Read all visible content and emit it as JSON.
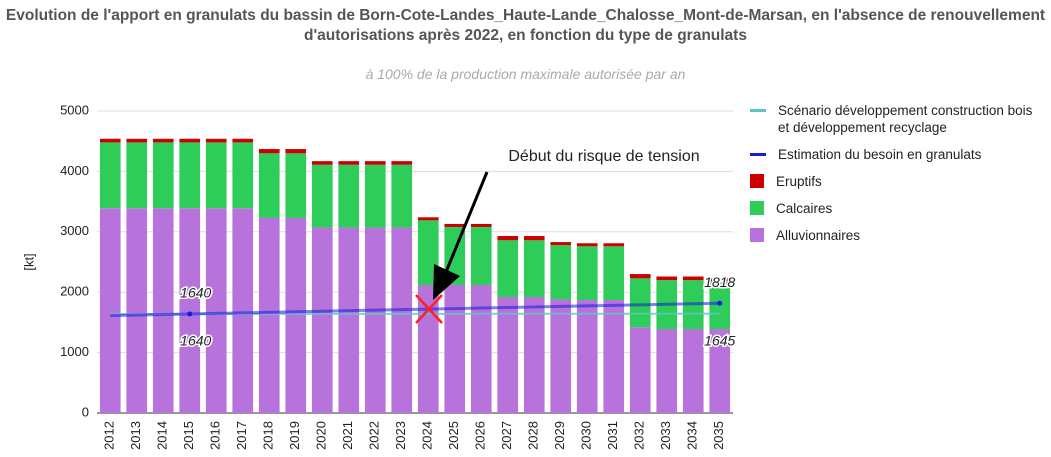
{
  "chart_data": {
    "type": "bar",
    "title": "Evolution de l'apport en granulats du bassin de Born-Cote-Landes_Haute-Lande_Chalosse_Mont-de-Marsan, en l'absence de renouvellement d'autorisations après 2022, en fonction du type de granulats",
    "subtitle": "à 100% de la production maximale autorisée par an",
    "y_label": "[kt]",
    "annotation": "Début du risque de tension",
    "categories": [
      "2012",
      "2013",
      "2014",
      "2015",
      "2016",
      "2017",
      "2018",
      "2019",
      "2020",
      "2021",
      "2022",
      "2023",
      "2024",
      "2025",
      "2026",
      "2027",
      "2028",
      "2029",
      "2030",
      "2031",
      "2032",
      "2033",
      "2034",
      "2035"
    ],
    "ylim": [
      0,
      5000
    ],
    "yticks": [
      0,
      1000,
      2000,
      3000,
      4000,
      5000
    ],
    "grid": true,
    "stacked": true,
    "legend": "right",
    "series": [
      {
        "name": "Scénario développement construction bois et développement recyclage",
        "type": "line",
        "color": "#5ec4cc",
        "values": [
          1638,
          1639,
          1639,
          1640,
          1640,
          1640,
          1641,
          1641,
          1641,
          1641,
          1642,
          1642,
          1642,
          1642,
          1643,
          1643,
          1643,
          1643,
          1644,
          1644,
          1644,
          1644,
          1645,
          1645
        ],
        "value_labels": [
          null,
          null,
          null,
          "1640",
          null,
          null,
          null,
          null,
          null,
          null,
          null,
          null,
          null,
          null,
          null,
          null,
          null,
          null,
          null,
          null,
          null,
          null,
          null,
          "1645"
        ]
      },
      {
        "name": "Estimation du besoin en granulats",
        "type": "line",
        "color": "#1a1adc",
        "values": [
          1613,
          1622,
          1631,
          1640,
          1649,
          1658,
          1667,
          1676,
          1685,
          1694,
          1703,
          1711,
          1720,
          1729,
          1738,
          1747,
          1756,
          1765,
          1774,
          1782,
          1791,
          1800,
          1809,
          1818
        ],
        "value_labels": [
          null,
          null,
          null,
          "1640",
          null,
          null,
          null,
          null,
          null,
          null,
          null,
          null,
          null,
          null,
          null,
          null,
          null,
          null,
          null,
          null,
          null,
          null,
          null,
          "1818"
        ]
      },
      {
        "name": "Eruptifs",
        "type": "bar",
        "color": "#cc0000",
        "values": [
          60,
          60,
          60,
          60,
          60,
          60,
          70,
          70,
          60,
          60,
          60,
          60,
          50,
          50,
          50,
          70,
          70,
          50,
          50,
          50,
          70,
          60,
          60,
          50
        ]
      },
      {
        "name": "Calcaires",
        "type": "bar",
        "color": "#2ecc58",
        "values": [
          1090,
          1090,
          1090,
          1090,
          1090,
          1090,
          1070,
          1070,
          1040,
          1040,
          1040,
          1040,
          1070,
          960,
          960,
          940,
          940,
          900,
          890,
          890,
          810,
          810,
          810,
          790
        ]
      },
      {
        "name": "Alluvionnaires",
        "type": "bar",
        "color": "#b872dc",
        "values": [
          3390,
          3390,
          3390,
          3390,
          3390,
          3390,
          3230,
          3230,
          3070,
          3070,
          3070,
          3070,
          2120,
          2120,
          2120,
          1920,
          1920,
          1880,
          1870,
          1870,
          1420,
          1390,
          1390,
          1390
        ]
      }
    ]
  }
}
